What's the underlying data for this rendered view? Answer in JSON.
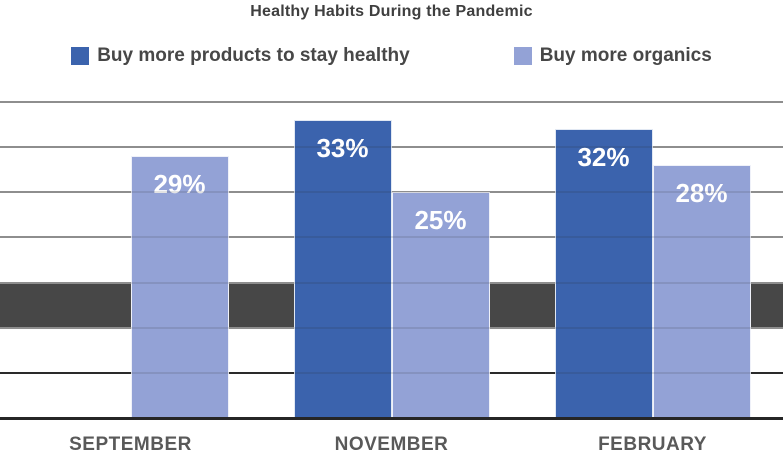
{
  "chart_data": {
    "type": "bar",
    "title": "Healthy Habits During the Pandemic",
    "categories": [
      "SEPTEMBER",
      "NOVEMBER",
      "FEBRUARY"
    ],
    "series": [
      {
        "name": "Buy more products to stay healthy",
        "color": "#3B63AD",
        "values": [
          null,
          33,
          32
        ]
      },
      {
        "name": "Buy more organics",
        "color": "#93A2D6",
        "values": [
          29,
          25,
          28
        ]
      }
    ],
    "data_labels": {
      "september_organics": "29%",
      "november_products": "33%",
      "november_organics": "25%",
      "february_products": "32%",
      "february_organics": "28%"
    },
    "value_suffix": "%",
    "xlabel": "",
    "ylabel": "",
    "ylim": [
      0,
      35
    ],
    "grid_step": 5,
    "grid": true,
    "legend_position": "top",
    "highlight_band": {
      "from": 10,
      "to": 15,
      "color": "#474747"
    }
  },
  "style": {
    "background": "#ffffff",
    "title_color": "#3f3f3f",
    "legend_text_color": "#474747",
    "x_label_color": "#595959",
    "gridline_color": "#9E9E9E",
    "gridline_dark_color": "#2b2b2b",
    "axis_color": "#262626",
    "bar_label_color": "#ffffff"
  }
}
